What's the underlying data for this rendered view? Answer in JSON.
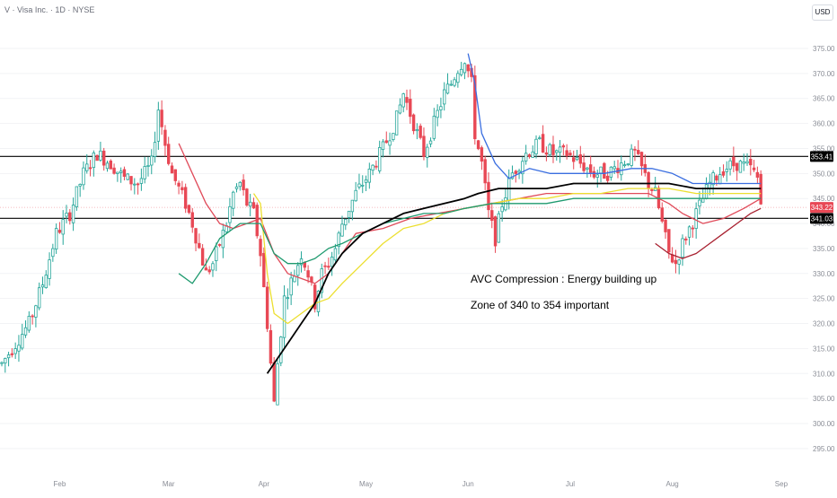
{
  "header": {
    "symbol_title": "V · Visa Inc. · 1D · NYSE",
    "currency": "USD"
  },
  "annotations": {
    "line1": "AVC Compression : Energy building up",
    "line2": "Zone of 340 to 354 important"
  },
  "colors": {
    "up": "#26a69a",
    "down": "#e84855",
    "sma_fast": "#e04b5a",
    "ema_blue": "#3a6ee0",
    "ema_yellow": "#ecdf2f",
    "ema_green": "#1f9a6f",
    "sma_black": "#000000",
    "sma_darkred": "#a8202f",
    "current_price": "#e84855",
    "level_label": "#000000"
  },
  "chart_data": {
    "type": "candlestick",
    "title": "",
    "xlabel": "",
    "ylabel": "",
    "ylim": [
      293,
      378
    ],
    "y_ticks": [
      "295.00",
      "300.00",
      "305.00",
      "310.00",
      "315.00",
      "320.00",
      "325.00",
      "330.00",
      "335.00",
      "340.00",
      "345.00",
      "350.00",
      "355.00",
      "360.00",
      "365.00",
      "370.00",
      "375.00"
    ],
    "x_ticks": [
      "Feb",
      "Mar",
      "Apr",
      "May",
      "Jun",
      "Jul",
      "Aug",
      "Sep"
    ],
    "x_tick_days": [
      17,
      49,
      77,
      107,
      137,
      167,
      197,
      229
    ],
    "horizontal_levels": [
      {
        "label": "353.41",
        "value": 353.41
      },
      {
        "label": "341.03",
        "value": 341.03
      }
    ],
    "current_price": {
      "label": "343.22",
      "value": 343.22
    },
    "price_path": [
      [
        0,
        312
      ],
      [
        4,
        316
      ],
      [
        8,
        320
      ],
      [
        12,
        328
      ],
      [
        16,
        338
      ],
      [
        20,
        342
      ],
      [
        24,
        350
      ],
      [
        28,
        354
      ],
      [
        32,
        352
      ],
      [
        36,
        349
      ],
      [
        40,
        348
      ],
      [
        44,
        352
      ],
      [
        46,
        363
      ],
      [
        48,
        356
      ],
      [
        50,
        350
      ],
      [
        52,
        347
      ],
      [
        54,
        344
      ],
      [
        56,
        340
      ],
      [
        58,
        335
      ],
      [
        60,
        330
      ],
      [
        62,
        332
      ],
      [
        64,
        336
      ],
      [
        66,
        340
      ],
      [
        68,
        346
      ],
      [
        70,
        348
      ],
      [
        72,
        344
      ],
      [
        74,
        342
      ],
      [
        76,
        334
      ],
      [
        78,
        320
      ],
      [
        80,
        304
      ],
      [
        81,
        312
      ],
      [
        83,
        325
      ],
      [
        86,
        330
      ],
      [
        88,
        334
      ],
      [
        90,
        330
      ],
      [
        92,
        324
      ],
      [
        94,
        330
      ],
      [
        96,
        332
      ],
      [
        98,
        335
      ],
      [
        100,
        340
      ],
      [
        104,
        346
      ],
      [
        108,
        350
      ],
      [
        112,
        355
      ],
      [
        116,
        361
      ],
      [
        118,
        366
      ],
      [
        120,
        362
      ],
      [
        122,
        358
      ],
      [
        124,
        354
      ],
      [
        126,
        358
      ],
      [
        128,
        362
      ],
      [
        130,
        366
      ],
      [
        132,
        368
      ],
      [
        134,
        371
      ],
      [
        136,
        373
      ],
      [
        138,
        368
      ],
      [
        139,
        358
      ],
      [
        141,
        352
      ],
      [
        143,
        342
      ],
      [
        145,
        337
      ],
      [
        147,
        344
      ],
      [
        150,
        350
      ],
      [
        154,
        354
      ],
      [
        158,
        356
      ],
      [
        162,
        354
      ],
      [
        166,
        354
      ],
      [
        170,
        352
      ],
      [
        174,
        350
      ],
      [
        178,
        350
      ],
      [
        182,
        352
      ],
      [
        186,
        354
      ],
      [
        188,
        351
      ],
      [
        190,
        348
      ],
      [
        192,
        346
      ],
      [
        194,
        340
      ],
      [
        196,
        334
      ],
      [
        198,
        332
      ],
      [
        200,
        336
      ],
      [
        204,
        342
      ],
      [
        208,
        348
      ],
      [
        212,
        351
      ],
      [
        216,
        352
      ],
      [
        220,
        351
      ],
      [
        222,
        349
      ],
      [
        223,
        344
      ]
    ],
    "series": [
      {
        "name": "",
        "color_key": "sma_fast",
        "points": [
          [
            52,
            356
          ],
          [
            56,
            350
          ],
          [
            60,
            344
          ],
          [
            64,
            340
          ],
          [
            68,
            339
          ],
          [
            72,
            340
          ],
          [
            76,
            341
          ],
          [
            80,
            334
          ],
          [
            84,
            330
          ],
          [
            88,
            329
          ],
          [
            92,
            328
          ],
          [
            96,
            330
          ],
          [
            104,
            338
          ],
          [
            112,
            339
          ],
          [
            120,
            341
          ],
          [
            128,
            342
          ],
          [
            136,
            343
          ],
          [
            144,
            344
          ],
          [
            152,
            345
          ],
          [
            160,
            346
          ],
          [
            168,
            346
          ],
          [
            176,
            346
          ],
          [
            184,
            346
          ],
          [
            190,
            346
          ],
          [
            196,
            344
          ],
          [
            200,
            342
          ],
          [
            206,
            340
          ],
          [
            212,
            341
          ],
          [
            218,
            343
          ],
          [
            223,
            345
          ]
        ]
      },
      {
        "name": "",
        "color_key": "ema_blue",
        "points": [
          [
            137,
            374
          ],
          [
            139,
            368
          ],
          [
            141,
            358
          ],
          [
            145,
            352
          ],
          [
            149,
            349
          ],
          [
            155,
            351
          ],
          [
            161,
            350
          ],
          [
            169,
            350
          ],
          [
            177,
            350
          ],
          [
            185,
            351
          ],
          [
            191,
            351
          ],
          [
            197,
            350
          ],
          [
            203,
            348
          ],
          [
            211,
            348
          ],
          [
            219,
            348
          ],
          [
            223,
            348
          ]
        ]
      },
      {
        "name": "",
        "color_key": "ema_yellow",
        "points": [
          [
            74,
            346
          ],
          [
            76,
            344
          ],
          [
            78,
            330
          ],
          [
            80,
            322
          ],
          [
            84,
            320
          ],
          [
            88,
            322
          ],
          [
            92,
            324
          ],
          [
            96,
            325
          ],
          [
            100,
            328
          ],
          [
            106,
            332
          ],
          [
            112,
            336
          ],
          [
            118,
            339
          ],
          [
            124,
            340
          ],
          [
            130,
            342
          ],
          [
            136,
            343
          ],
          [
            144,
            344
          ],
          [
            152,
            345
          ],
          [
            160,
            345
          ],
          [
            168,
            346
          ],
          [
            176,
            346
          ],
          [
            184,
            347
          ],
          [
            190,
            347
          ],
          [
            196,
            347
          ],
          [
            204,
            346
          ],
          [
            212,
            346
          ],
          [
            223,
            346
          ]
        ]
      },
      {
        "name": "",
        "color_key": "ema_green",
        "points": [
          [
            52,
            330
          ],
          [
            56,
            328
          ],
          [
            60,
            332
          ],
          [
            64,
            337
          ],
          [
            70,
            340
          ],
          [
            76,
            340
          ],
          [
            80,
            334
          ],
          [
            84,
            332
          ],
          [
            88,
            332
          ],
          [
            92,
            333
          ],
          [
            96,
            335
          ],
          [
            100,
            336
          ],
          [
            106,
            338
          ],
          [
            112,
            340
          ],
          [
            118,
            341
          ],
          [
            124,
            342
          ],
          [
            130,
            342
          ],
          [
            136,
            343
          ],
          [
            144,
            344
          ],
          [
            152,
            344
          ],
          [
            160,
            344
          ],
          [
            168,
            345
          ],
          [
            176,
            345
          ],
          [
            184,
            345
          ],
          [
            190,
            345
          ],
          [
            196,
            345
          ],
          [
            204,
            345
          ],
          [
            212,
            345
          ],
          [
            223,
            345
          ]
        ]
      },
      {
        "name": "",
        "color_key": "sma_black",
        "points": [
          [
            78,
            310
          ],
          [
            80,
            312
          ],
          [
            84,
            316
          ],
          [
            88,
            320
          ],
          [
            90,
            322
          ],
          [
            92,
            324
          ],
          [
            96,
            330
          ],
          [
            100,
            334
          ],
          [
            106,
            338
          ],
          [
            112,
            340
          ],
          [
            118,
            342
          ],
          [
            124,
            343
          ],
          [
            130,
            344
          ],
          [
            136,
            345
          ],
          [
            140,
            346
          ],
          [
            146,
            347
          ],
          [
            152,
            347
          ],
          [
            160,
            347
          ],
          [
            168,
            348
          ],
          [
            176,
            348
          ],
          [
            184,
            348
          ],
          [
            190,
            348
          ],
          [
            196,
            348
          ],
          [
            204,
            347
          ],
          [
            212,
            347
          ],
          [
            223,
            347
          ]
        ]
      },
      {
        "name": "",
        "color_key": "sma_darkred",
        "points": [
          [
            192,
            336
          ],
          [
            196,
            334
          ],
          [
            200,
            333
          ],
          [
            204,
            334
          ],
          [
            208,
            336
          ],
          [
            212,
            338
          ],
          [
            216,
            340
          ],
          [
            220,
            342
          ],
          [
            223,
            343
          ]
        ]
      }
    ]
  }
}
